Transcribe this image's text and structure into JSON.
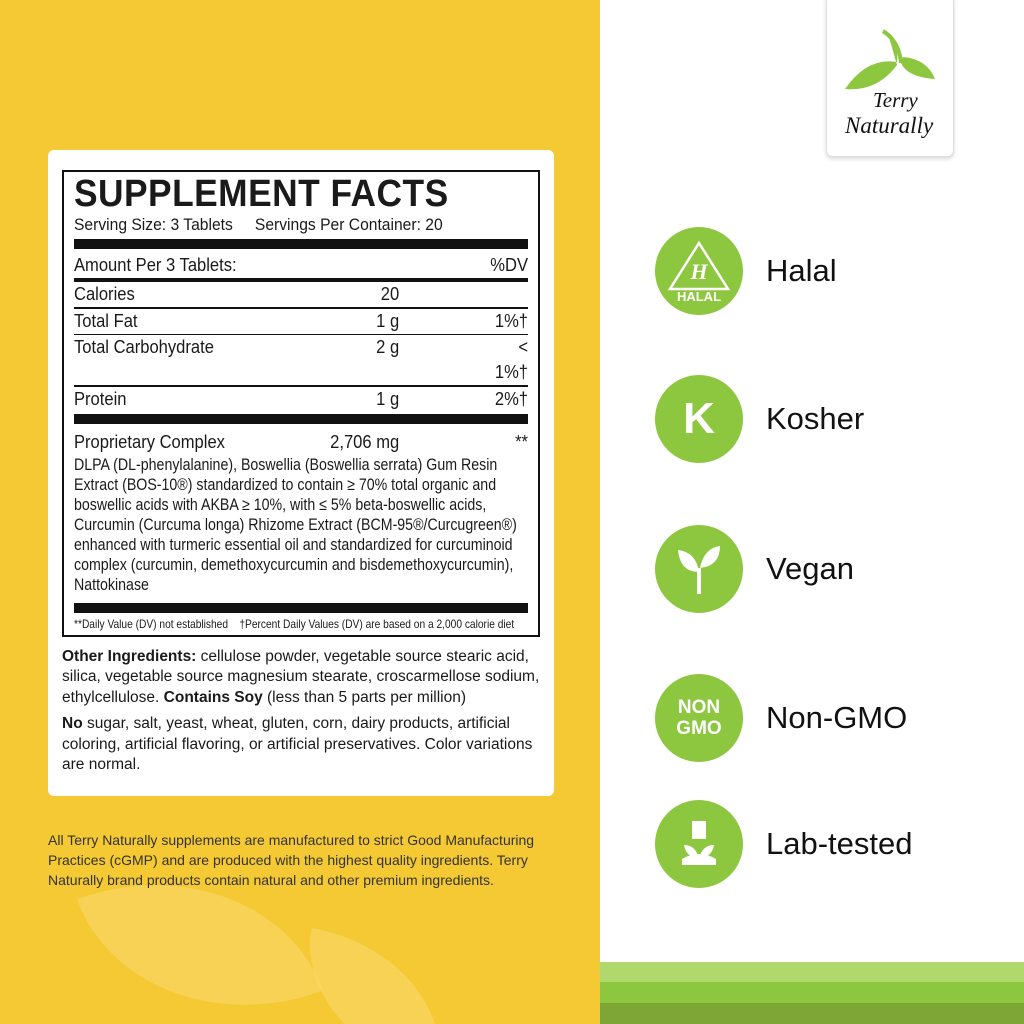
{
  "facts": {
    "title": "SUPPLEMENT FACTS",
    "serving_size": "Serving Size: 3 Tablets",
    "servings_per_container": "Servings Per Container: 20",
    "amount_per": "Amount Per 3 Tablets:",
    "dv_header": "%DV",
    "rows": [
      {
        "name": "Calories",
        "amount": "20",
        "dv": ""
      },
      {
        "name": "Total Fat",
        "amount": "1 g",
        "dv": "1%†"
      },
      {
        "name": "Total Carbohydrate",
        "amount": "2 g",
        "dv": "< 1%†"
      },
      {
        "name": "Protein",
        "amount": "1 g",
        "dv": "2%†"
      }
    ],
    "proprietary": {
      "name": "Proprietary Complex",
      "amount": "2,706 mg",
      "dv": "**"
    },
    "description": "DLPA (DL-phenylalanine), Boswellia (Boswellia serrata) Gum Resin Extract (BOS-10®) standardized to contain ≥ 70% total organic and boswellic acids with AKBA ≥ 10%, with ≤ 5% beta-boswellic acids, Curcumin (Curcuma longa) Rhizome Extract (BCM-95®/Curcugreen®) enhanced with turmeric essential oil and standardized for curcuminoid complex (curcumin, demethoxycurcumin and bisdemethoxycurcumin), Nattokinase",
    "footnote_dv": "**Daily Value (DV) not established",
    "footnote_pct": "†Percent Daily Values (DV) are based on a 2,000 calorie diet"
  },
  "other": {
    "label": "Other Ingredients:",
    "text": " cellulose powder, vegetable source stearic acid, silica, vegetable source magnesium stearate, croscarmellose sodium, ethylcellulose. ",
    "soy_label": "Contains Soy",
    "soy_text": " (less than 5 parts per million)",
    "no_label": "No",
    "no_text": " sugar, salt, yeast, wheat, gluten, corn, dairy products, artificial coloring, artificial flavoring, or artificial preservatives. Color variations are normal."
  },
  "gmp": "All Terry Naturally supplements are manufactured to strict Good Manufacturing Practices (cGMP) and are produced with the highest quality ingredients. Terry Naturally brand products contain natural and other premium ingredients.",
  "logo": {
    "line1": "Terry",
    "line2": "Naturally"
  },
  "certs": [
    {
      "icon": "halal-icon",
      "badge": "HALAL",
      "label": "Halal"
    },
    {
      "icon": "kosher-icon",
      "badge": "K",
      "label": "Kosher"
    },
    {
      "icon": "vegan-sprout-icon",
      "badge": "",
      "label": "Vegan"
    },
    {
      "icon": "non-gmo-icon",
      "badge": "NON GMO",
      "label": "Non-GMO"
    },
    {
      "icon": "lab-flask-icon",
      "badge": "",
      "label": "Lab-tested"
    }
  ],
  "colors": {
    "yellow": "#f5c933",
    "green": "#8dc63f",
    "stripe_light": "#b0d86c",
    "stripe_mid": "#8dc63f",
    "stripe_dark": "#7ea637"
  }
}
